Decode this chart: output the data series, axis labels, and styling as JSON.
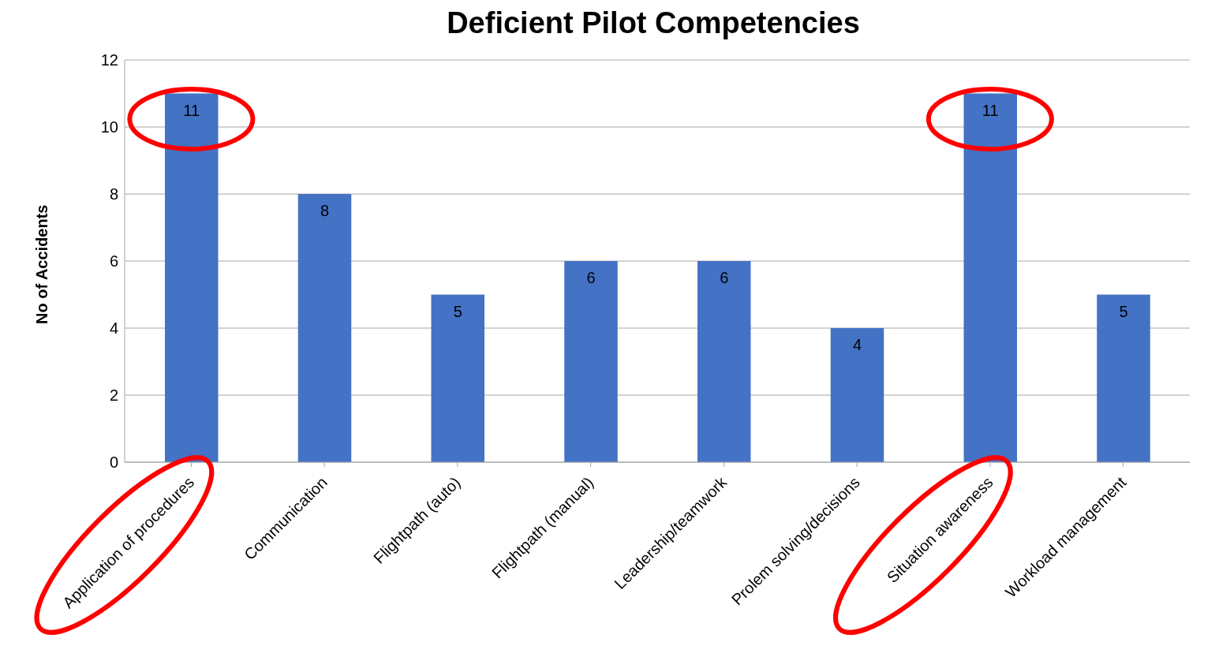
{
  "chart_data": {
    "type": "bar",
    "title": "Deficient Pilot Competencies",
    "ylabel": "No of Accidents",
    "categories": [
      "Application of procedures",
      "Communication",
      "Flightpath (auto)",
      "Flightpath (manual)",
      "Leadership/teamwork",
      "Prolem solving/decisions",
      "Situation awareness",
      "Workload management"
    ],
    "values": [
      11,
      8,
      5,
      6,
      6,
      4,
      11,
      5
    ],
    "color": "#4472c4",
    "ylim": [
      0,
      12
    ],
    "yticks": [
      0,
      2,
      4,
      6,
      8,
      10,
      12
    ],
    "grid": "y",
    "data_labels": true
  }
}
